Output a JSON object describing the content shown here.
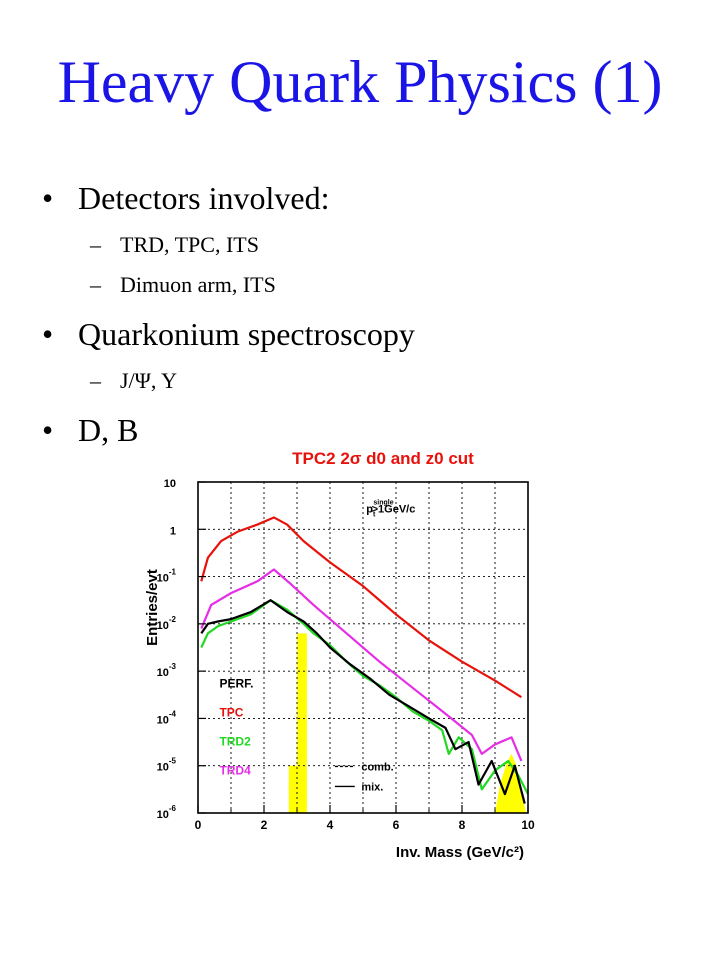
{
  "slide": {
    "title": "Heavy Quark Physics (1)",
    "bullets": [
      {
        "level": 1,
        "text": "Detectors involved:"
      },
      {
        "level": 2,
        "text": "TRD, TPC, ITS"
      },
      {
        "level": 2,
        "text": "Dimuon arm, ITS"
      },
      {
        "level": 1,
        "text": "Quarkonium spectroscopy"
      },
      {
        "level": 2,
        "text": "J/Ψ, Υ"
      },
      {
        "level": 1,
        "text": "D, B"
      }
    ],
    "bullet_symbol": "•",
    "dash_symbol": "–"
  },
  "chart_data": {
    "type": "line",
    "title": "TPC2 2σ d0 and z0 cut",
    "xlabel": "Inv. Mass (GeV/c²)",
    "ylabel": "Entries/evt",
    "xlim": [
      0,
      10
    ],
    "ylim_log10": [
      -6,
      1
    ],
    "log_y": true,
    "x_ticks": [
      "0",
      "2",
      "4",
      "6",
      "8",
      "10"
    ],
    "y_ticks": [
      {
        "base": "10",
        "exp": ""
      },
      {
        "base": "1",
        "exp": ""
      },
      {
        "base": "10",
        "exp": "-1"
      },
      {
        "base": "10",
        "exp": "-2"
      },
      {
        "base": "10",
        "exp": "-3"
      },
      {
        "base": "10",
        "exp": "-4"
      },
      {
        "base": "10",
        "exp": "-5"
      },
      {
        "base": "10",
        "exp": "-6"
      }
    ],
    "annotation": {
      "text": "p",
      "sub": "t",
      "sup": "single",
      "rest": ">1GeV/c"
    },
    "legend_series": [
      {
        "name": "PERF.",
        "color": "#000000"
      },
      {
        "name": "TPC",
        "color": "#e8120c"
      },
      {
        "name": "TRD2",
        "color": "#22d822"
      },
      {
        "name": "TRD4",
        "color": "#e62ee6"
      }
    ],
    "legend_style": [
      {
        "name": "comb.",
        "dash": true
      },
      {
        "name": "mix.",
        "dash": false
      }
    ],
    "colors": {
      "title": "#e8120c",
      "highlight": "#ffff00",
      "grid": "#000000"
    },
    "series": [
      {
        "name": "TPC",
        "color": "#e8120c",
        "log10": [
          [
            0.1,
            -1.1
          ],
          [
            0.3,
            -0.6
          ],
          [
            0.7,
            -0.25
          ],
          [
            1.2,
            -0.05
          ],
          [
            1.8,
            0.1
          ],
          [
            2.3,
            0.25
          ],
          [
            2.7,
            0.1
          ],
          [
            3.2,
            -0.25
          ],
          [
            4,
            -0.7
          ],
          [
            5,
            -1.2
          ],
          [
            6,
            -1.8
          ],
          [
            7,
            -2.35
          ],
          [
            8,
            -2.8
          ],
          [
            9,
            -3.2
          ],
          [
            9.8,
            -3.55
          ]
        ]
      },
      {
        "name": "TRD4",
        "color": "#e62ee6",
        "log10": [
          [
            0.1,
            -2.1
          ],
          [
            0.4,
            -1.6
          ],
          [
            1,
            -1.35
          ],
          [
            1.8,
            -1.1
          ],
          [
            2.3,
            -0.85
          ],
          [
            2.8,
            -1.15
          ],
          [
            3.5,
            -1.6
          ],
          [
            4.5,
            -2.2
          ],
          [
            5.5,
            -2.8
          ],
          [
            6.5,
            -3.35
          ],
          [
            7.5,
            -3.9
          ],
          [
            8.3,
            -4.35
          ],
          [
            8.6,
            -4.75
          ],
          [
            9,
            -4.55
          ],
          [
            9.5,
            -4.4
          ],
          [
            9.8,
            -4.9
          ]
        ]
      },
      {
        "name": "TRD2",
        "color": "#22d822",
        "log10": [
          [
            0.1,
            -2.5
          ],
          [
            0.3,
            -2.2
          ],
          [
            0.6,
            -2.05
          ],
          [
            1,
            -1.95
          ],
          [
            1.6,
            -1.8
          ],
          [
            2.2,
            -1.5
          ],
          [
            2.7,
            -1.7
          ],
          [
            3.2,
            -2.0
          ],
          [
            3.5,
            -2.2
          ],
          [
            4,
            -2.45
          ],
          [
            4.5,
            -2.8
          ],
          [
            5,
            -3.1
          ],
          [
            5.5,
            -3.3
          ],
          [
            6,
            -3.55
          ],
          [
            6.5,
            -3.85
          ],
          [
            7,
            -4.05
          ],
          [
            7.4,
            -4.25
          ],
          [
            7.6,
            -4.75
          ],
          [
            7.9,
            -4.4
          ],
          [
            8.3,
            -4.65
          ],
          [
            8.6,
            -5.5
          ],
          [
            9,
            -5.1
          ],
          [
            9.4,
            -4.9
          ],
          [
            9.7,
            -5.2
          ],
          [
            10,
            -5.6
          ]
        ]
      },
      {
        "name": "PERF.",
        "color": "#000000",
        "log10": [
          [
            0.1,
            -2.2
          ],
          [
            0.3,
            -2.0
          ],
          [
            0.6,
            -1.95
          ],
          [
            1,
            -1.9
          ],
          [
            1.6,
            -1.75
          ],
          [
            2.2,
            -1.5
          ],
          [
            2.7,
            -1.75
          ],
          [
            3.2,
            -1.95
          ],
          [
            3.6,
            -2.2
          ],
          [
            4,
            -2.5
          ],
          [
            4.6,
            -2.85
          ],
          [
            5.2,
            -3.15
          ],
          [
            5.8,
            -3.5
          ],
          [
            6.4,
            -3.75
          ],
          [
            7,
            -4.0
          ],
          [
            7.5,
            -4.2
          ],
          [
            7.8,
            -4.65
          ],
          [
            8.2,
            -4.5
          ],
          [
            8.5,
            -5.4
          ],
          [
            8.9,
            -4.9
          ],
          [
            9.3,
            -5.6
          ],
          [
            9.6,
            -5.0
          ],
          [
            9.9,
            -5.8
          ]
        ]
      }
    ],
    "highlight_bars": [
      {
        "x0": 2.75,
        "x1": 3.0,
        "top_log10": -5.0
      },
      {
        "x0": 3.0,
        "x1": 3.3,
        "top_log10": -2.2
      }
    ],
    "highlight_peak": [
      [
        9.0,
        -6
      ],
      [
        9.15,
        -5.4
      ],
      [
        9.35,
        -4.95
      ],
      [
        9.5,
        -4.75
      ],
      [
        9.65,
        -5.0
      ],
      [
        9.8,
        -5.6
      ],
      [
        9.95,
        -6
      ]
    ]
  }
}
